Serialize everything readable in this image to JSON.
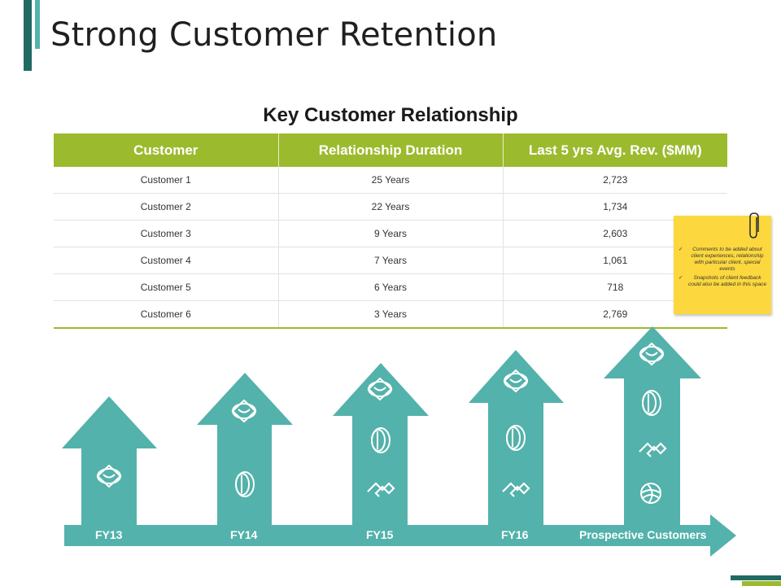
{
  "slide": {
    "title": "Strong Customer Retention"
  },
  "table": {
    "title": "Key Customer Relationship",
    "headers": [
      "Customer",
      "Relationship Duration",
      "Last 5 yrs Avg. Rev. ($MM)"
    ],
    "rows": [
      [
        "Customer 1",
        "25 Years",
        "2,723"
      ],
      [
        "Customer 2",
        "22 Years",
        "1,734"
      ],
      [
        "Customer 3",
        "9 Years",
        "2,603"
      ],
      [
        "Customer 4",
        "7 Years",
        "1,061"
      ],
      [
        "Customer 5",
        "6 Years",
        "718"
      ],
      [
        "Customer 6",
        "3 Years",
        "2,769"
      ]
    ]
  },
  "sticky_note": {
    "items": [
      {
        "check": "✓",
        "text": "Comments to be added about client experiences, relationship with particular client, special events"
      },
      {
        "check": "✓",
        "text": "Snapshots of client feedback could also be added in this space"
      }
    ]
  },
  "timeline": {
    "labels": [
      "FY13",
      "FY14",
      "FY15",
      "FY16",
      "Prospective Customers"
    ],
    "icons_per_arrow": [
      [
        "handshake-icon"
      ],
      [
        "handshake-icon",
        "coin-icon"
      ],
      [
        "handshake-icon",
        "coin-icon",
        "growth-icon"
      ],
      [
        "handshake-icon",
        "coin-icon",
        "growth-icon"
      ],
      [
        "handshake-icon",
        "coin-icon",
        "growth-icon",
        "globe-icon"
      ]
    ]
  },
  "colors": {
    "teal": "#53b2ab",
    "dark_teal": "#1f6b63",
    "olive": "#9cba2e",
    "sticky": "#fcd83e"
  }
}
